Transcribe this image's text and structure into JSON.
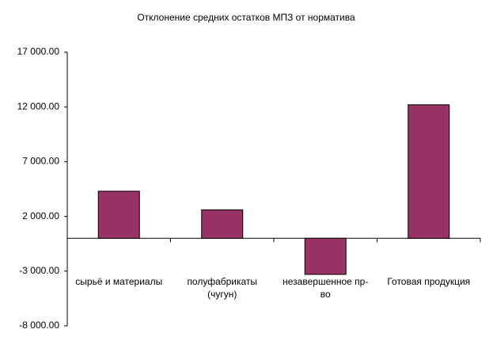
{
  "chart_data": {
    "type": "bar",
    "title": "Отклонение средних остатков МПЗ от норматива",
    "categories": [
      "сырьё и материалы",
      "полуфабрикаты (чугун)",
      "незавершенное пр-во",
      "Готовая продукция"
    ],
    "values": [
      4300,
      2600,
      -3300,
      12200
    ],
    "color": "#993366",
    "ylim": [
      -8000,
      17000
    ],
    "yticks": [
      {
        "value": -8000,
        "label": "-8 000.00"
      },
      {
        "value": -3000,
        "label": "-3 000.00"
      },
      {
        "value": 2000,
        "label": "2 000.00"
      },
      {
        "value": 7000,
        "label": "7 000.00"
      },
      {
        "value": 12000,
        "label": "12 000.00"
      },
      {
        "value": 17000,
        "label": "17 000.00"
      }
    ],
    "grid": false
  }
}
